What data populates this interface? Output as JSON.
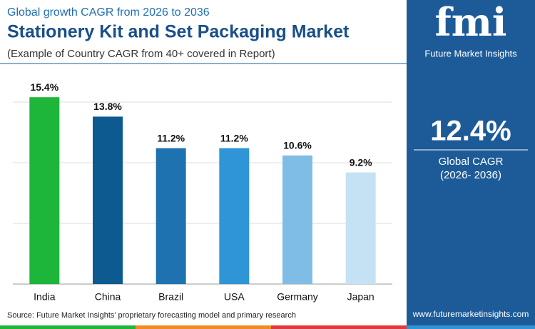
{
  "chart_data": {
    "type": "bar",
    "kicker": "Global growth CAGR from 2026 to 2036",
    "title": "Stationery Kit and Set Packaging Market",
    "subtitle": "(Example of Country CAGR from 40+ covered in Report)",
    "categories": [
      "India",
      "China",
      "Brazil",
      "USA",
      "Germany",
      "Japan"
    ],
    "values": [
      15.4,
      13.8,
      11.2,
      11.2,
      10.6,
      9.2
    ],
    "value_labels": [
      "15.4%",
      "13.8%",
      "11.2%",
      "11.2%",
      "10.6%",
      "9.2%"
    ],
    "colors": [
      "#1db53a",
      "#0d5a91",
      "#1f72b0",
      "#2f95d6",
      "#80bde6",
      "#c5e2f4"
    ],
    "ylim": [
      0,
      16
    ],
    "yticks": [
      0,
      5,
      10,
      15
    ],
    "grid": true
  },
  "sidebar": {
    "logo": "fmi",
    "brand": "Future Market Insights",
    "cagr": "12.4%",
    "cagr_label": "Global CAGR",
    "period": "(2026- 2036)",
    "website": "www.futuremarketinsights.com"
  },
  "source": "Source: Future Market Insights’ proprietary forecasting model and primary research"
}
